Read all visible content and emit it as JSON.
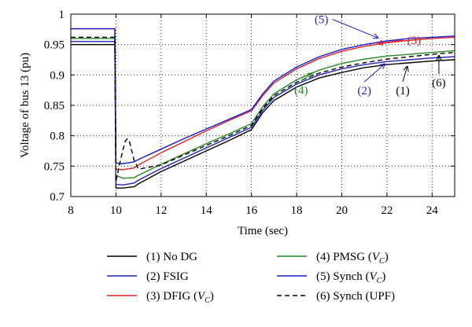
{
  "chart_data": {
    "type": "line",
    "xlabel": "Time (sec)",
    "ylabel": "Voltage of bus 13 (pu)",
    "xlim": [
      8,
      25
    ],
    "ylim": [
      0.7,
      1.0
    ],
    "xticks": [
      8,
      10,
      12,
      14,
      16,
      18,
      20,
      22,
      24
    ],
    "yticks": [
      0.7,
      0.75,
      0.8,
      0.85,
      0.9,
      0.95,
      1
    ],
    "ytick_labels": [
      "0.7",
      "0.75",
      "0.8",
      "0.85",
      "0.9",
      "0.95",
      "1"
    ],
    "grid": "dotted",
    "series": [
      {
        "name": "(1) No DG",
        "color": "#000000",
        "dash": "solid",
        "points": [
          [
            8,
            0.95
          ],
          [
            9.95,
            0.95
          ],
          [
            10,
            0.714
          ],
          [
            10.3,
            0.714
          ],
          [
            10.8,
            0.716
          ],
          [
            11,
            0.721
          ],
          [
            12,
            0.741
          ],
          [
            13,
            0.758
          ],
          [
            14,
            0.775
          ],
          [
            15,
            0.792
          ],
          [
            16,
            0.81
          ],
          [
            16.5,
            0.838
          ],
          [
            17,
            0.858
          ],
          [
            18,
            0.88
          ],
          [
            19,
            0.895
          ],
          [
            20,
            0.904
          ],
          [
            21,
            0.912
          ],
          [
            22,
            0.917
          ],
          [
            23,
            0.92
          ],
          [
            24,
            0.923
          ],
          [
            25,
            0.925
          ]
        ]
      },
      {
        "name": "(2) FSIG",
        "color": "#2222bb",
        "dash": "solid",
        "points": [
          [
            8,
            0.955
          ],
          [
            9.95,
            0.955
          ],
          [
            10,
            0.72
          ],
          [
            10.3,
            0.719
          ],
          [
            10.8,
            0.722
          ],
          [
            11,
            0.727
          ],
          [
            12,
            0.746
          ],
          [
            13,
            0.763
          ],
          [
            14,
            0.78
          ],
          [
            15,
            0.797
          ],
          [
            16,
            0.814
          ],
          [
            16.5,
            0.842
          ],
          [
            17,
            0.863
          ],
          [
            18,
            0.885
          ],
          [
            19,
            0.9
          ],
          [
            20,
            0.91
          ],
          [
            21,
            0.917
          ],
          [
            22,
            0.922
          ],
          [
            23,
            0.925
          ],
          [
            24,
            0.928
          ],
          [
            25,
            0.93
          ]
        ]
      },
      {
        "name": "(3) DFIG",
        "sub": "C",
        "color": "#dd2222",
        "dash": "solid",
        "points": [
          [
            8,
            0.976
          ],
          [
            9.95,
            0.976
          ],
          [
            10,
            0.745
          ],
          [
            10.3,
            0.744
          ],
          [
            10.8,
            0.747
          ],
          [
            11,
            0.752
          ],
          [
            12,
            0.772
          ],
          [
            13,
            0.79
          ],
          [
            14,
            0.808
          ],
          [
            15,
            0.825
          ],
          [
            16,
            0.841
          ],
          [
            16.5,
            0.866
          ],
          [
            17,
            0.887
          ],
          [
            18,
            0.91
          ],
          [
            19,
            0.927
          ],
          [
            20,
            0.939
          ],
          [
            21,
            0.947
          ],
          [
            22,
            0.953
          ],
          [
            23,
            0.957
          ],
          [
            24,
            0.96
          ],
          [
            25,
            0.962
          ]
        ]
      },
      {
        "name": "(4) PMSG",
        "sub": "C",
        "color": "#228822",
        "dash": "solid",
        "points": [
          [
            8,
            0.96
          ],
          [
            9.95,
            0.96
          ],
          [
            10,
            0.735
          ],
          [
            10.3,
            0.73
          ],
          [
            10.8,
            0.731
          ],
          [
            11,
            0.735
          ],
          [
            12,
            0.753
          ],
          [
            13,
            0.77
          ],
          [
            14,
            0.787
          ],
          [
            15,
            0.803
          ],
          [
            16,
            0.82
          ],
          [
            16.5,
            0.848
          ],
          [
            17,
            0.869
          ],
          [
            18,
            0.892
          ],
          [
            19,
            0.908
          ],
          [
            20,
            0.919
          ],
          [
            21,
            0.926
          ],
          [
            22,
            0.931
          ],
          [
            23,
            0.934
          ],
          [
            24,
            0.937
          ],
          [
            25,
            0.94
          ]
        ]
      },
      {
        "name": "(5) Synch",
        "sub": "C",
        "color": "#1a1acc",
        "dash": "solid",
        "points": [
          [
            8,
            0.976
          ],
          [
            9.95,
            0.976
          ],
          [
            10,
            0.755
          ],
          [
            10.3,
            0.754
          ],
          [
            10.8,
            0.757
          ],
          [
            11,
            0.761
          ],
          [
            12,
            0.778
          ],
          [
            13,
            0.795
          ],
          [
            14,
            0.811
          ],
          [
            15,
            0.827
          ],
          [
            16,
            0.843
          ],
          [
            16.5,
            0.869
          ],
          [
            17,
            0.89
          ],
          [
            18,
            0.913
          ],
          [
            19,
            0.93
          ],
          [
            20,
            0.942
          ],
          [
            21,
            0.95
          ],
          [
            22,
            0.956
          ],
          [
            23,
            0.96
          ],
          [
            24,
            0.962
          ],
          [
            25,
            0.964
          ]
        ]
      },
      {
        "name": "(6) Synch (UPF)",
        "color": "#000000",
        "dash": "dashed",
        "points": [
          [
            8,
            0.962
          ],
          [
            9.95,
            0.962
          ],
          [
            10,
            0.725
          ],
          [
            10.2,
            0.76
          ],
          [
            10.4,
            0.79
          ],
          [
            10.5,
            0.795
          ],
          [
            10.6,
            0.79
          ],
          [
            10.8,
            0.76
          ],
          [
            11,
            0.745
          ],
          [
            12,
            0.752
          ],
          [
            13,
            0.768
          ],
          [
            14,
            0.784
          ],
          [
            15,
            0.8
          ],
          [
            16,
            0.817
          ],
          [
            16.5,
            0.845
          ],
          [
            17,
            0.866
          ],
          [
            18,
            0.888
          ],
          [
            19,
            0.903
          ],
          [
            20,
            0.913
          ],
          [
            21,
            0.92
          ],
          [
            22,
            0.926
          ],
          [
            23,
            0.93
          ],
          [
            24,
            0.934
          ],
          [
            25,
            0.937
          ]
        ]
      }
    ],
    "annotations": [
      {
        "text": "(5)",
        "color": "#2222bb",
        "label_at": [
          19.1,
          0.985
        ],
        "arrow_to": [
          21.6,
          0.961
        ]
      },
      {
        "text": "(3)",
        "color": "#dd2222",
        "label_at": [
          23.2,
          0.951
        ],
        "arrow_to": [
          21.6,
          0.952
        ]
      },
      {
        "text": "(4)",
        "color": "#228822",
        "label_at": [
          18.2,
          0.869
        ],
        "arrow_to": [
          18.7,
          0.903
        ]
      },
      {
        "text": "(2)",
        "color": "#2222bb",
        "label_at": [
          21.0,
          0.868
        ],
        "arrow_to": [
          21.9,
          0.918
        ]
      },
      {
        "text": "(1)",
        "color": "#000000",
        "label_at": [
          22.7,
          0.868
        ],
        "arrow_to": [
          22.9,
          0.914
        ]
      },
      {
        "text": "(6)",
        "color": "#000000",
        "label_at": [
          24.3,
          0.881
        ],
        "arrow_to": [
          24.3,
          0.932
        ]
      }
    ],
    "legend": {
      "columns": 2,
      "entries_order": [
        0,
        3,
        1,
        4,
        2,
        5
      ],
      "sub_label_prefix": "V"
    }
  }
}
